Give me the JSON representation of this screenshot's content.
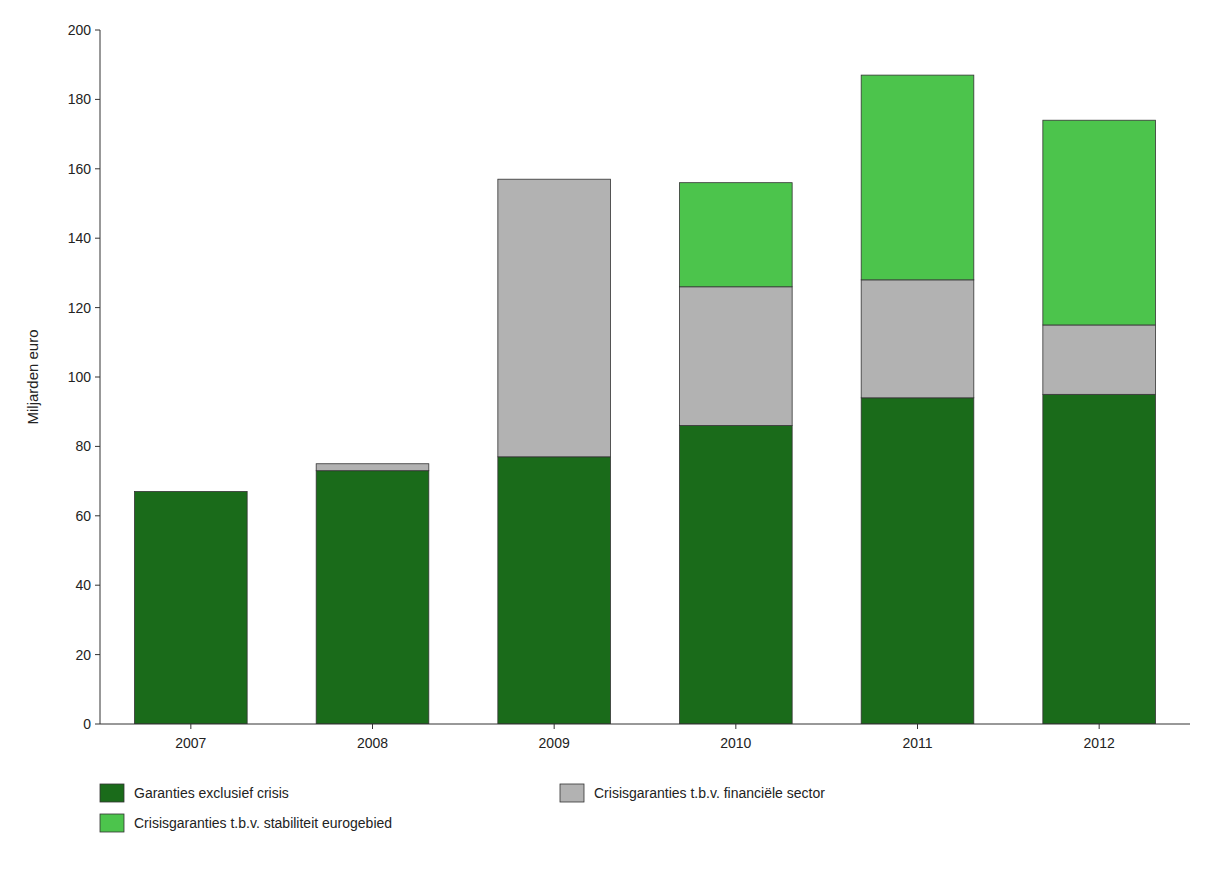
{
  "chart_data": {
    "type": "bar",
    "stacked": true,
    "categories": [
      "2007",
      "2008",
      "2009",
      "2010",
      "2011",
      "2012"
    ],
    "series": [
      {
        "name": "Garanties exclusief crisis",
        "color": "#1a6b1a",
        "values": [
          67,
          73,
          77,
          86,
          94,
          95
        ]
      },
      {
        "name": "Crisisgaranties t.b.v. financiële sector",
        "color": "#b2b2b2",
        "values": [
          0,
          2,
          80,
          40,
          34,
          20
        ]
      },
      {
        "name": "Crisisgaranties t.b.v. stabiliteit eurogebied",
        "color": "#4cc44c",
        "values": [
          0,
          0,
          0,
          30,
          59,
          59
        ]
      }
    ],
    "y_label": "Miljarden euro",
    "ylim": [
      0,
      200
    ],
    "yticks": [
      0,
      20,
      40,
      60,
      80,
      100,
      120,
      140,
      160,
      180,
      200
    ],
    "grid": false,
    "legend": "bottom"
  }
}
